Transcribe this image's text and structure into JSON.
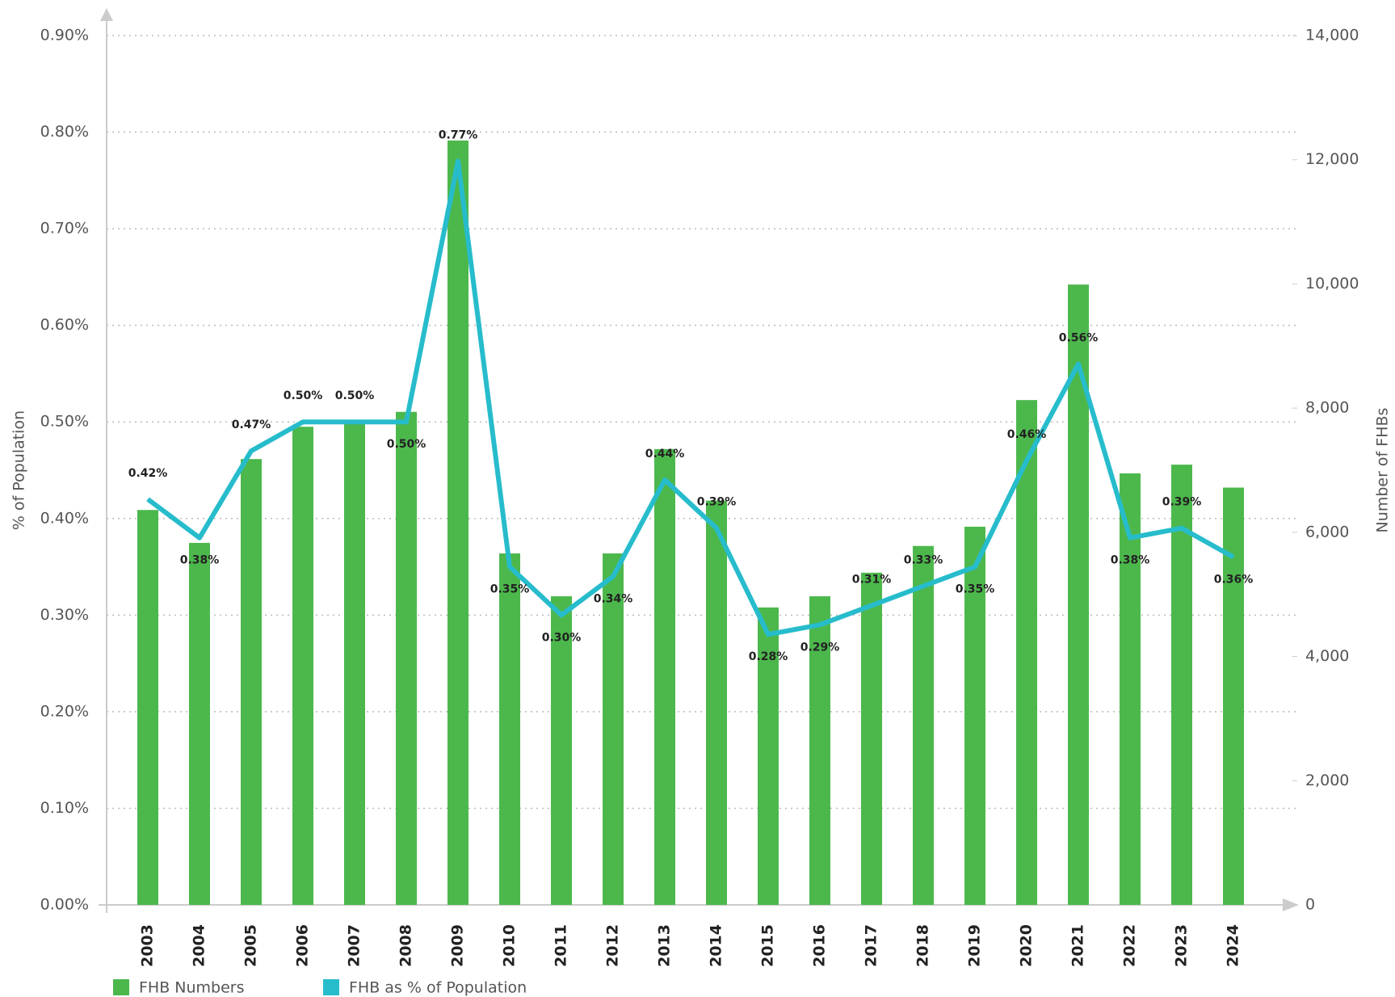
{
  "chart_data": {
    "type": "bar_line",
    "categories": [
      "2003",
      "2004",
      "2005",
      "2006",
      "2007",
      "2008",
      "2009",
      "2010",
      "2011",
      "2012",
      "2013",
      "2014",
      "2015",
      "2016",
      "2017",
      "2018",
      "2019",
      "2020",
      "2021",
      "2022",
      "2023",
      "2024"
    ],
    "series": [
      {
        "name": "FHB Numbers",
        "color": "#4cb84c",
        "type": "bar",
        "axis": "y2",
        "values": [
          6360,
          5830,
          7180,
          7700,
          7770,
          7940,
          12310,
          5660,
          4970,
          5660,
          7340,
          6510,
          4790,
          4970,
          5350,
          5780,
          6090,
          8130,
          9990,
          6950,
          7090,
          6720
        ]
      },
      {
        "name": "FHB as % of Population",
        "color": "#27bccc",
        "type": "line",
        "values": [
          0.42,
          0.38,
          0.47,
          0.5,
          0.5,
          0.5,
          0.77,
          0.35,
          0.3,
          0.34,
          0.44,
          0.39,
          0.28,
          0.29,
          0.31,
          0.33,
          0.35,
          0.46,
          0.56,
          0.38,
          0.39,
          0.36
        ],
        "value_labels": [
          "0.42%",
          "0.38%",
          "0.47%",
          "0.50%",
          "0.50%",
          "0.50%",
          "0.77%",
          "0.35%",
          "0.30%",
          "0.34%",
          "0.44%",
          "0.39%",
          "0.28%",
          "0.29%",
          "0.31%",
          "0.33%",
          "0.35%",
          "0.46%",
          "0.56%",
          "0.38%",
          "0.39%",
          "0.36%"
        ]
      }
    ],
    "ylabel": "% of Population",
    "y2label": "Number of FHBs",
    "ylim": [
      0,
      0.9
    ],
    "yticks": [
      {
        "value": 0,
        "label": "0.00%"
      },
      {
        "value": 0.1,
        "label": "0.10%"
      },
      {
        "value": 0.2,
        "label": "0.20%"
      },
      {
        "value": 0.3,
        "label": "0.30%"
      },
      {
        "value": 0.4,
        "label": "0.40%"
      },
      {
        "value": 0.5,
        "label": "0.50%"
      },
      {
        "value": 0.6,
        "label": "0.60%"
      },
      {
        "value": 0.7,
        "label": "0.70%"
      },
      {
        "value": 0.8,
        "label": "0.80%"
      },
      {
        "value": 0.9,
        "label": "0.90%"
      }
    ],
    "y2lim": [
      0,
      14000
    ],
    "y2ticks": [
      0,
      {
        "value": 2000,
        "label": "2,000"
      },
      {
        "value": 4000,
        "label": "4,000"
      },
      {
        "value": 6000,
        "label": "6,000"
      },
      {
        "value": 8000,
        "label": "8,000"
      },
      {
        "value": 10000,
        "label": "10,000"
      },
      {
        "value": 12000,
        "label": "12,000"
      },
      {
        "value": 14000,
        "label": "14,000"
      }
    ],
    "grid": true
  }
}
